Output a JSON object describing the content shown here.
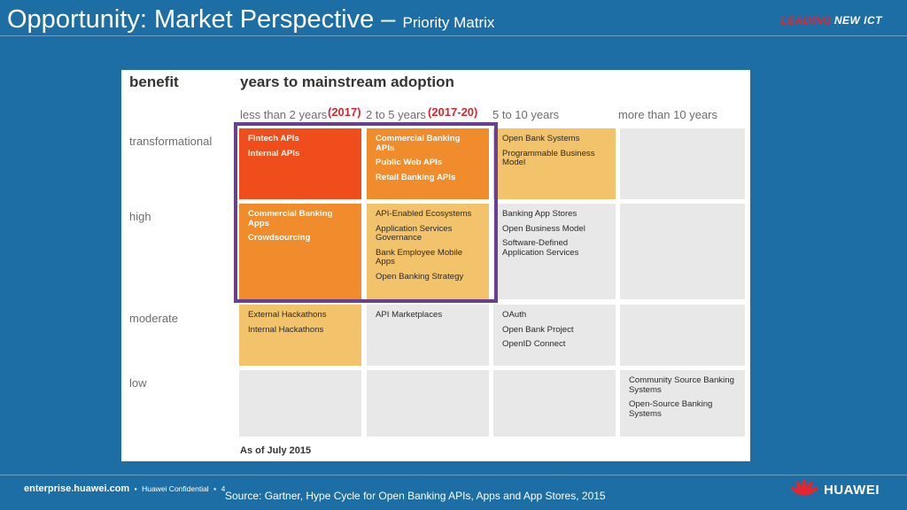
{
  "slide": {
    "title_main": "Opportunity:  Market Perspective – ",
    "title_sub": "Priority Matrix",
    "tagline_lead": "LEADING",
    "tagline_ict": "NEW ICT"
  },
  "matrix": {
    "benefit_header": "benefit",
    "adoption_header": "years to mainstream adoption",
    "columns": [
      "less than 2 years",
      "2 to 5 years",
      "5 to 10 years",
      "more than 10 years"
    ],
    "year_tags": [
      "(2017)",
      "(2017-20)"
    ],
    "rows": [
      "transformational",
      "high",
      "moderate",
      "low"
    ],
    "cells": {
      "transformational": [
        [
          "Fintech APIs",
          "Internal APIs"
        ],
        [
          "Commercial Banking APIs",
          "Public Web APIs",
          "Retail Banking APIs"
        ],
        [
          "Open Bank Systems",
          "Programmable Business Model"
        ],
        []
      ],
      "high": [
        [
          "Commercial Banking Apps",
          "Crowdsourcing"
        ],
        [
          "API-Enabled Ecosystems",
          "Application Services Governance",
          "Bank Employee Mobile Apps",
          "Open Banking Strategy"
        ],
        [
          "Banking App Stores",
          "Open Business Model",
          "Software-Defined Application Services"
        ],
        []
      ],
      "moderate": [
        [
          "External Hackathons",
          "Internal Hackathons"
        ],
        [
          "API Marketplaces"
        ],
        [
          "OAuth",
          "Open Bank Project",
          "OpenID Connect"
        ],
        []
      ],
      "low": [
        [],
        [],
        [],
        [
          "Community Source Banking Systems",
          "Open-Source Banking Systems"
        ]
      ]
    },
    "as_of": "As of July 2015"
  },
  "footer": {
    "site": "enterprise.huawei.com",
    "confidential": "Huawei Confidential",
    "page": "4",
    "source": "Source:  Gartner, Hype Cycle for Open Banking APIs, Apps and App Stores, 2015",
    "brand": "HUAWEI"
  },
  "colors": {
    "background": "#1c6ea4",
    "red": "#f04d1c",
    "orange": "#f08c2c",
    "gold": "#f2c36a",
    "grey": "#e8e8e8",
    "highlight_border": "#6a3f8e",
    "year_tag": "#d8262d"
  },
  "icons": {
    "brand_logo": "huawei-petal-logo-icon"
  }
}
